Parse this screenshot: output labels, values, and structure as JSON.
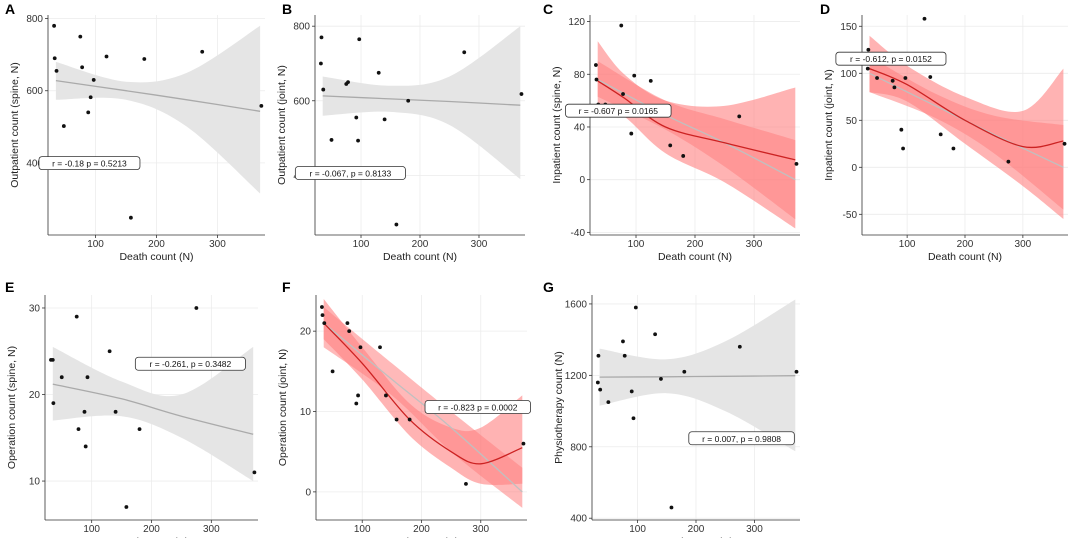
{
  "chart_data": [
    {
      "panel": "A",
      "type": "scatter",
      "xlabel": "Death count (N)",
      "ylabel": "Outpatient count (spine, N)",
      "xlim": [
        22,
        378
      ],
      "ylim": [
        200,
        810
      ],
      "xticks": [
        100,
        200,
        300
      ],
      "yticks": [
        400,
        600,
        800
      ],
      "points": [
        [
          32,
          780
        ],
        [
          33,
          690
        ],
        [
          36,
          655
        ],
        [
          48,
          502
        ],
        [
          75,
          750
        ],
        [
          78,
          665
        ],
        [
          92,
          582
        ],
        [
          88,
          540
        ],
        [
          97,
          630
        ],
        [
          118,
          695
        ],
        [
          140,
          410
        ],
        [
          158,
          248
        ],
        [
          180,
          688
        ],
        [
          275,
          708
        ],
        [
          372,
          558
        ]
      ],
      "fits": [
        {
          "kind": "linear",
          "color": "#aaaaaa",
          "ci_color": "#e5e5e5",
          "x": [
            35,
            150,
            250,
            370
          ],
          "fit": [
            628,
            600,
            575,
            543
          ],
          "lo": [
            575,
            575,
            500,
            315
          ],
          "hi": [
            680,
            625,
            650,
            780
          ]
        }
      ],
      "annotation": "r = -0.18 p = 0.5213",
      "ann_pos": [
        90,
        398
      ]
    },
    {
      "panel": "B",
      "type": "scatter",
      "xlabel": "Death count (N)",
      "ylabel": "Outpatient count (joint, N)",
      "xlim": [
        22,
        378
      ],
      "ylim": [
        240,
        830
      ],
      "xticks": [
        100,
        200,
        300
      ],
      "yticks": [
        400,
        600,
        800
      ],
      "points": [
        [
          32,
          700
        ],
        [
          33,
          770
        ],
        [
          36,
          630
        ],
        [
          50,
          495
        ],
        [
          75,
          645
        ],
        [
          78,
          650
        ],
        [
          92,
          555
        ],
        [
          95,
          493
        ],
        [
          97,
          765
        ],
        [
          130,
          675
        ],
        [
          140,
          550
        ],
        [
          160,
          268
        ],
        [
          180,
          600
        ],
        [
          275,
          730
        ],
        [
          372,
          618
        ]
      ],
      "fits": [
        {
          "kind": "linear",
          "color": "#aaaaaa",
          "ci_color": "#e5e5e5",
          "x": [
            35,
            150,
            250,
            370
          ],
          "fit": [
            613,
            605,
            598,
            588
          ],
          "lo": [
            560,
            570,
            535,
            390
          ],
          "hi": [
            665,
            640,
            665,
            800
          ]
        }
      ],
      "annotation": "r = -0.067, p = 0.8133",
      "ann_pos": [
        82,
        405
      ]
    },
    {
      "panel": "C",
      "type": "scatter",
      "xlabel": "Death count (N)",
      "ylabel": "Inpatient count (spine, N)",
      "xlim": [
        22,
        378
      ],
      "ylim": [
        -42,
        125
      ],
      "xticks": [
        100,
        200,
        300
      ],
      "yticks": [
        -40,
        0,
        40,
        80,
        120
      ],
      "points": [
        [
          32,
          87
        ],
        [
          33,
          76
        ],
        [
          36,
          57
        ],
        [
          48,
          57
        ],
        [
          75,
          117
        ],
        [
          78,
          65
        ],
        [
          92,
          35
        ],
        [
          97,
          79
        ],
        [
          125,
          75
        ],
        [
          140,
          55
        ],
        [
          158,
          26
        ],
        [
          180,
          18
        ],
        [
          275,
          48
        ],
        [
          372,
          12
        ]
      ],
      "fits": [
        {
          "kind": "linear",
          "color": "#c0c0c0",
          "ci_color": "#ff8080",
          "ci_opacity": 0.55,
          "x": [
            35,
            150,
            250,
            370
          ],
          "fit": [
            76,
            49,
            28,
            0
          ],
          "lo": [
            63,
            38,
            10,
            -30
          ],
          "hi": [
            90,
            60,
            46,
            30
          ]
        },
        {
          "kind": "loess",
          "color": "#cc2222",
          "ci_color": "#ff8080",
          "ci_opacity": 0.6,
          "x": [
            35,
            80,
            150,
            250,
            370
          ],
          "fit": [
            75,
            62,
            40,
            28,
            15
          ],
          "lo": [
            57,
            48,
            20,
            -2,
            -37
          ],
          "hi": [
            105,
            80,
            60,
            56,
            70
          ]
        }
      ],
      "annotation": "r = -0.607 p = 0.0165",
      "ann_pos": [
        70,
        52
      ]
    },
    {
      "panel": "D",
      "type": "scatter",
      "xlabel": "Death count (N)",
      "ylabel": "Inpatient count (joint, N)",
      "xlim": [
        22,
        378
      ],
      "ylim": [
        -72,
        162
      ],
      "xticks": [
        100,
        200,
        300
      ],
      "yticks": [
        -50,
        0,
        50,
        100,
        150
      ],
      "points": [
        [
          32,
          105
        ],
        [
          33,
          125
        ],
        [
          36,
          115
        ],
        [
          48,
          95
        ],
        [
          75,
          92
        ],
        [
          78,
          85
        ],
        [
          90,
          40
        ],
        [
          93,
          20
        ],
        [
          97,
          95
        ],
        [
          130,
          158
        ],
        [
          140,
          96
        ],
        [
          158,
          35
        ],
        [
          180,
          20
        ],
        [
          275,
          6
        ],
        [
          372,
          25
        ]
      ],
      "fits": [
        {
          "kind": "linear",
          "color": "#c0c0c0",
          "ci_color": "#ff8080",
          "ci_opacity": 0.55,
          "x": [
            35,
            150,
            250,
            370
          ],
          "fit": [
            100,
            65,
            35,
            0
          ],
          "lo": [
            80,
            52,
            15,
            -45
          ],
          "hi": [
            118,
            78,
            55,
            45
          ]
        },
        {
          "kind": "loess",
          "color": "#cc2222",
          "ci_color": "#ff8080",
          "ci_opacity": 0.6,
          "x": [
            35,
            100,
            200,
            300,
            370
          ],
          "fit": [
            105,
            88,
            50,
            22,
            28
          ],
          "lo": [
            80,
            70,
            25,
            -20,
            -55
          ],
          "hi": [
            140,
            108,
            75,
            60,
            105
          ]
        }
      ],
      "annotation": "r = -0.612, p = 0.0152",
      "ann_pos": [
        72,
        115
      ]
    },
    {
      "panel": "E",
      "type": "scatter",
      "xlabel": "Death count (N)",
      "ylabel": "Operation count (spine, N)",
      "xlim": [
        22,
        378
      ],
      "ylim": [
        5.5,
        31.5
      ],
      "xticks": [
        100,
        200,
        300
      ],
      "yticks": [
        10,
        20,
        30
      ],
      "points": [
        [
          32,
          24
        ],
        [
          35,
          24
        ],
        [
          36,
          19
        ],
        [
          50,
          22
        ],
        [
          75,
          29
        ],
        [
          78,
          16
        ],
        [
          90,
          14
        ],
        [
          93,
          22
        ],
        [
          88,
          18
        ],
        [
          130,
          25
        ],
        [
          140,
          18
        ],
        [
          158,
          7
        ],
        [
          180,
          16
        ],
        [
          275,
          30
        ],
        [
          372,
          11
        ]
      ],
      "fits": [
        {
          "kind": "linear",
          "color": "#aaaaaa",
          "ci_color": "#e5e5e5",
          "x": [
            35,
            150,
            250,
            370
          ],
          "fit": [
            21.2,
            19.5,
            17.5,
            15.4
          ],
          "lo": [
            17,
            17.5,
            15,
            10
          ],
          "hi": [
            25.5,
            21.5,
            20,
            25.5
          ]
        }
      ],
      "annotation": "r = -0.261, p = 0.3482",
      "ann_pos": [
        265,
        23.5
      ]
    },
    {
      "panel": "F",
      "type": "scatter",
      "xlabel": "Death count (N)",
      "ylabel": "Operation count (joint, N)",
      "xlim": [
        22,
        378
      ],
      "ylim": [
        -3.5,
        24.5
      ],
      "xticks": [
        100,
        200,
        300
      ],
      "yticks": [
        0,
        10,
        20
      ],
      "points": [
        [
          32,
          23
        ],
        [
          33,
          22
        ],
        [
          36,
          21
        ],
        [
          50,
          15
        ],
        [
          75,
          21
        ],
        [
          78,
          20
        ],
        [
          90,
          11
        ],
        [
          93,
          12
        ],
        [
          97,
          18
        ],
        [
          130,
          18
        ],
        [
          140,
          12
        ],
        [
          158,
          9
        ],
        [
          180,
          9
        ],
        [
          275,
          1
        ],
        [
          372,
          6
        ]
      ],
      "fits": [
        {
          "kind": "linear",
          "color": "#c0c0c0",
          "ci_color": "#ff8080",
          "ci_opacity": 0.55,
          "x": [
            35,
            150,
            250,
            370
          ],
          "fit": [
            21,
            14,
            8,
            0
          ],
          "lo": [
            18,
            12,
            5,
            -2
          ],
          "hi": [
            23,
            16,
            10,
            3
          ]
        },
        {
          "kind": "loess",
          "color": "#cc2222",
          "ci_color": "#ff8080",
          "ci_opacity": 0.6,
          "x": [
            35,
            100,
            180,
            250,
            300,
            370
          ],
          "fit": [
            21,
            16,
            9,
            5,
            3.5,
            5.5
          ],
          "lo": [
            19,
            14,
            7,
            3,
            1,
            1
          ],
          "hi": [
            24,
            18,
            11,
            8,
            8,
            12
          ]
        }
      ],
      "annotation": "r = -0.823 p = 0.0002",
      "ann_pos": [
        295,
        10.5
      ]
    },
    {
      "panel": "G",
      "type": "scatter",
      "xlabel": "Death count (N)",
      "ylabel": "Physiotherapy count (N)",
      "xlim": [
        22,
        378
      ],
      "ylim": [
        390,
        1650
      ],
      "xticks": [
        100,
        200,
        300
      ],
      "yticks": [
        400,
        800,
        1200,
        1600
      ],
      "points": [
        [
          32,
          1160
        ],
        [
          33,
          1310
        ],
        [
          36,
          1120
        ],
        [
          50,
          1050
        ],
        [
          75,
          1390
        ],
        [
          78,
          1310
        ],
        [
          90,
          1110
        ],
        [
          93,
          960
        ],
        [
          97,
          1580
        ],
        [
          130,
          1430
        ],
        [
          140,
          1180
        ],
        [
          158,
          460
        ],
        [
          180,
          1220
        ],
        [
          275,
          1360
        ],
        [
          372,
          1220
        ]
      ],
      "fits": [
        {
          "kind": "linear",
          "color": "#aaaaaa",
          "ci_color": "#e5e5e5",
          "x": [
            35,
            150,
            250,
            370
          ],
          "fit": [
            1190,
            1192,
            1195,
            1198
          ],
          "lo": [
            1030,
            1100,
            1000,
            775
          ],
          "hi": [
            1350,
            1290,
            1390,
            1625
          ]
        }
      ],
      "annotation": "r = 0.007, p = 0.9808",
      "ann_pos": [
        278,
        845
      ]
    }
  ]
}
